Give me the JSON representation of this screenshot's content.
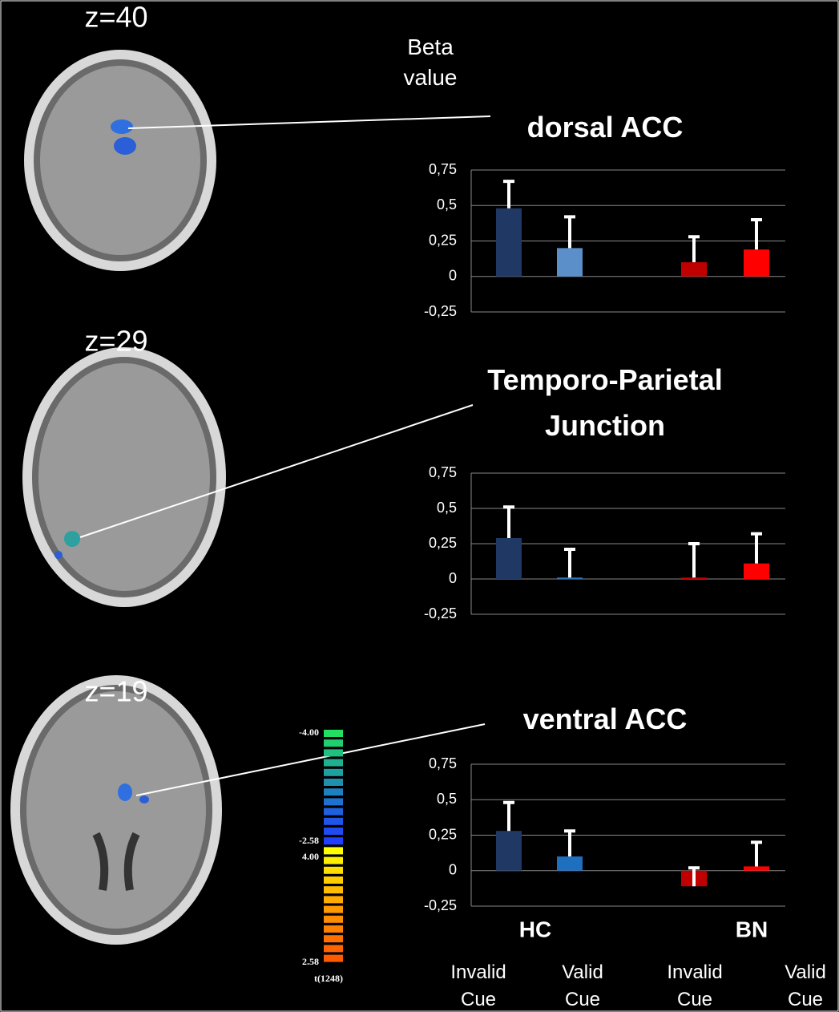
{
  "labels": {
    "beta": "Beta value",
    "slices": [
      "z=40",
      "z=29",
      "z=19"
    ],
    "colorbar": [
      "-4.00",
      "-2.58",
      "4.00",
      "2.58"
    ],
    "colorbar_stat": "t(1248)"
  },
  "chart_data": [
    {
      "type": "bar",
      "title": "dorsal ACC",
      "values": [
        0.48,
        0.2,
        0.1,
        0.19
      ],
      "errors": [
        0.19,
        0.22,
        0.18,
        0.21
      ],
      "colors": [
        "#1f3864",
        "#5b8fc9",
        "#c00000",
        "#ff0000"
      ],
      "ylim": [
        -0.25,
        0.75
      ],
      "yticks": [
        {
          "value": -0.25,
          "label": "-0,25"
        },
        0,
        {
          "value": 0.25,
          "label": "0,25"
        },
        {
          "value": 0.5,
          "label": "0,5"
        },
        {
          "value": 0.75,
          "label": "0,75"
        }
      ],
      "grid": true
    },
    {
      "type": "bar",
      "title": "Temporo-Parietal Junction",
      "values": [
        0.29,
        0.01,
        0.01,
        0.11
      ],
      "errors": [
        0.22,
        0.2,
        0.24,
        0.21
      ],
      "colors": [
        "#1f3864",
        "#2e75b6",
        "#c00000",
        "#ff0000"
      ],
      "ylim": [
        -0.25,
        0.75
      ],
      "yticks": [
        {
          "value": -0.25,
          "label": "-0,25"
        },
        0,
        {
          "value": 0.25,
          "label": "0,25"
        },
        {
          "value": 0.5,
          "label": "0,5"
        },
        {
          "value": 0.75,
          "label": "0,75"
        }
      ],
      "grid": true
    },
    {
      "type": "bar",
      "title": "ventral ACC",
      "categories": [
        "Invalid Cue",
        "Valid Cue",
        "Invalid Cue",
        "Valid Cue"
      ],
      "groups": [
        "HC",
        "BN"
      ],
      "values": [
        0.28,
        0.1,
        -0.11,
        0.03
      ],
      "errors": [
        0.2,
        0.18,
        0.13,
        0.17
      ],
      "colors": [
        "#1f3864",
        "#1f6fbf",
        "#c00000",
        "#ff0000"
      ],
      "ylim": [
        -0.25,
        0.75
      ],
      "yticks": [
        {
          "value": -0.25,
          "label": "-0,25"
        },
        0,
        {
          "value": 0.25,
          "label": "0,25"
        },
        {
          "value": 0.5,
          "label": "0,5"
        },
        {
          "value": 0.75,
          "label": "0,75"
        }
      ],
      "grid": true
    }
  ]
}
